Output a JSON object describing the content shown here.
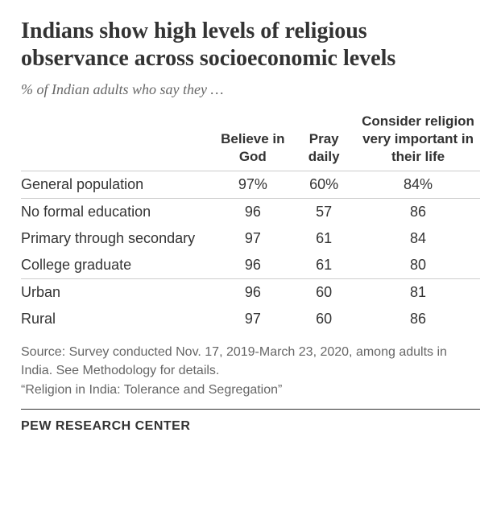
{
  "title": "Indians show high levels of religious observance across socioeconomic levels",
  "subtitle": "% of Indian adults who say they …",
  "columns": {
    "c1": "Believe in God",
    "c2": "Pray daily",
    "c3": "Consider religion very important in their life"
  },
  "rows": {
    "general": {
      "label": "General population",
      "v1": "97%",
      "v2": "60%",
      "v3": "84%"
    },
    "noformal": {
      "label": "No formal education",
      "v1": "96",
      "v2": "57",
      "v3": "86"
    },
    "primary": {
      "label": "Primary through secondary",
      "v1": "97",
      "v2": "61",
      "v3": "84"
    },
    "college": {
      "label": "College graduate",
      "v1": "96",
      "v2": "61",
      "v3": "80"
    },
    "urban": {
      "label": "Urban",
      "v1": "96",
      "v2": "60",
      "v3": "81"
    },
    "rural": {
      "label": "Rural",
      "v1": "97",
      "v2": "60",
      "v3": "86"
    }
  },
  "source": "Source: Survey conducted Nov. 17, 2019-March 23, 2020, among adults in India. See Methodology for details.",
  "quote": "“Religion in India: Tolerance and Segregation”",
  "org": "PEW RESEARCH CENTER",
  "style": {
    "title_fontsize": "28px",
    "subtitle_fontsize": "18px",
    "header_fontsize": "17px",
    "cell_fontsize": "18px",
    "source_fontsize": "16px",
    "org_fontsize": "16px",
    "title_color": "#333333",
    "subtitle_color": "#666666",
    "text_color": "#333333",
    "muted_color": "#666666",
    "divider_color": "#cccccc",
    "background_color": "#ffffff"
  }
}
